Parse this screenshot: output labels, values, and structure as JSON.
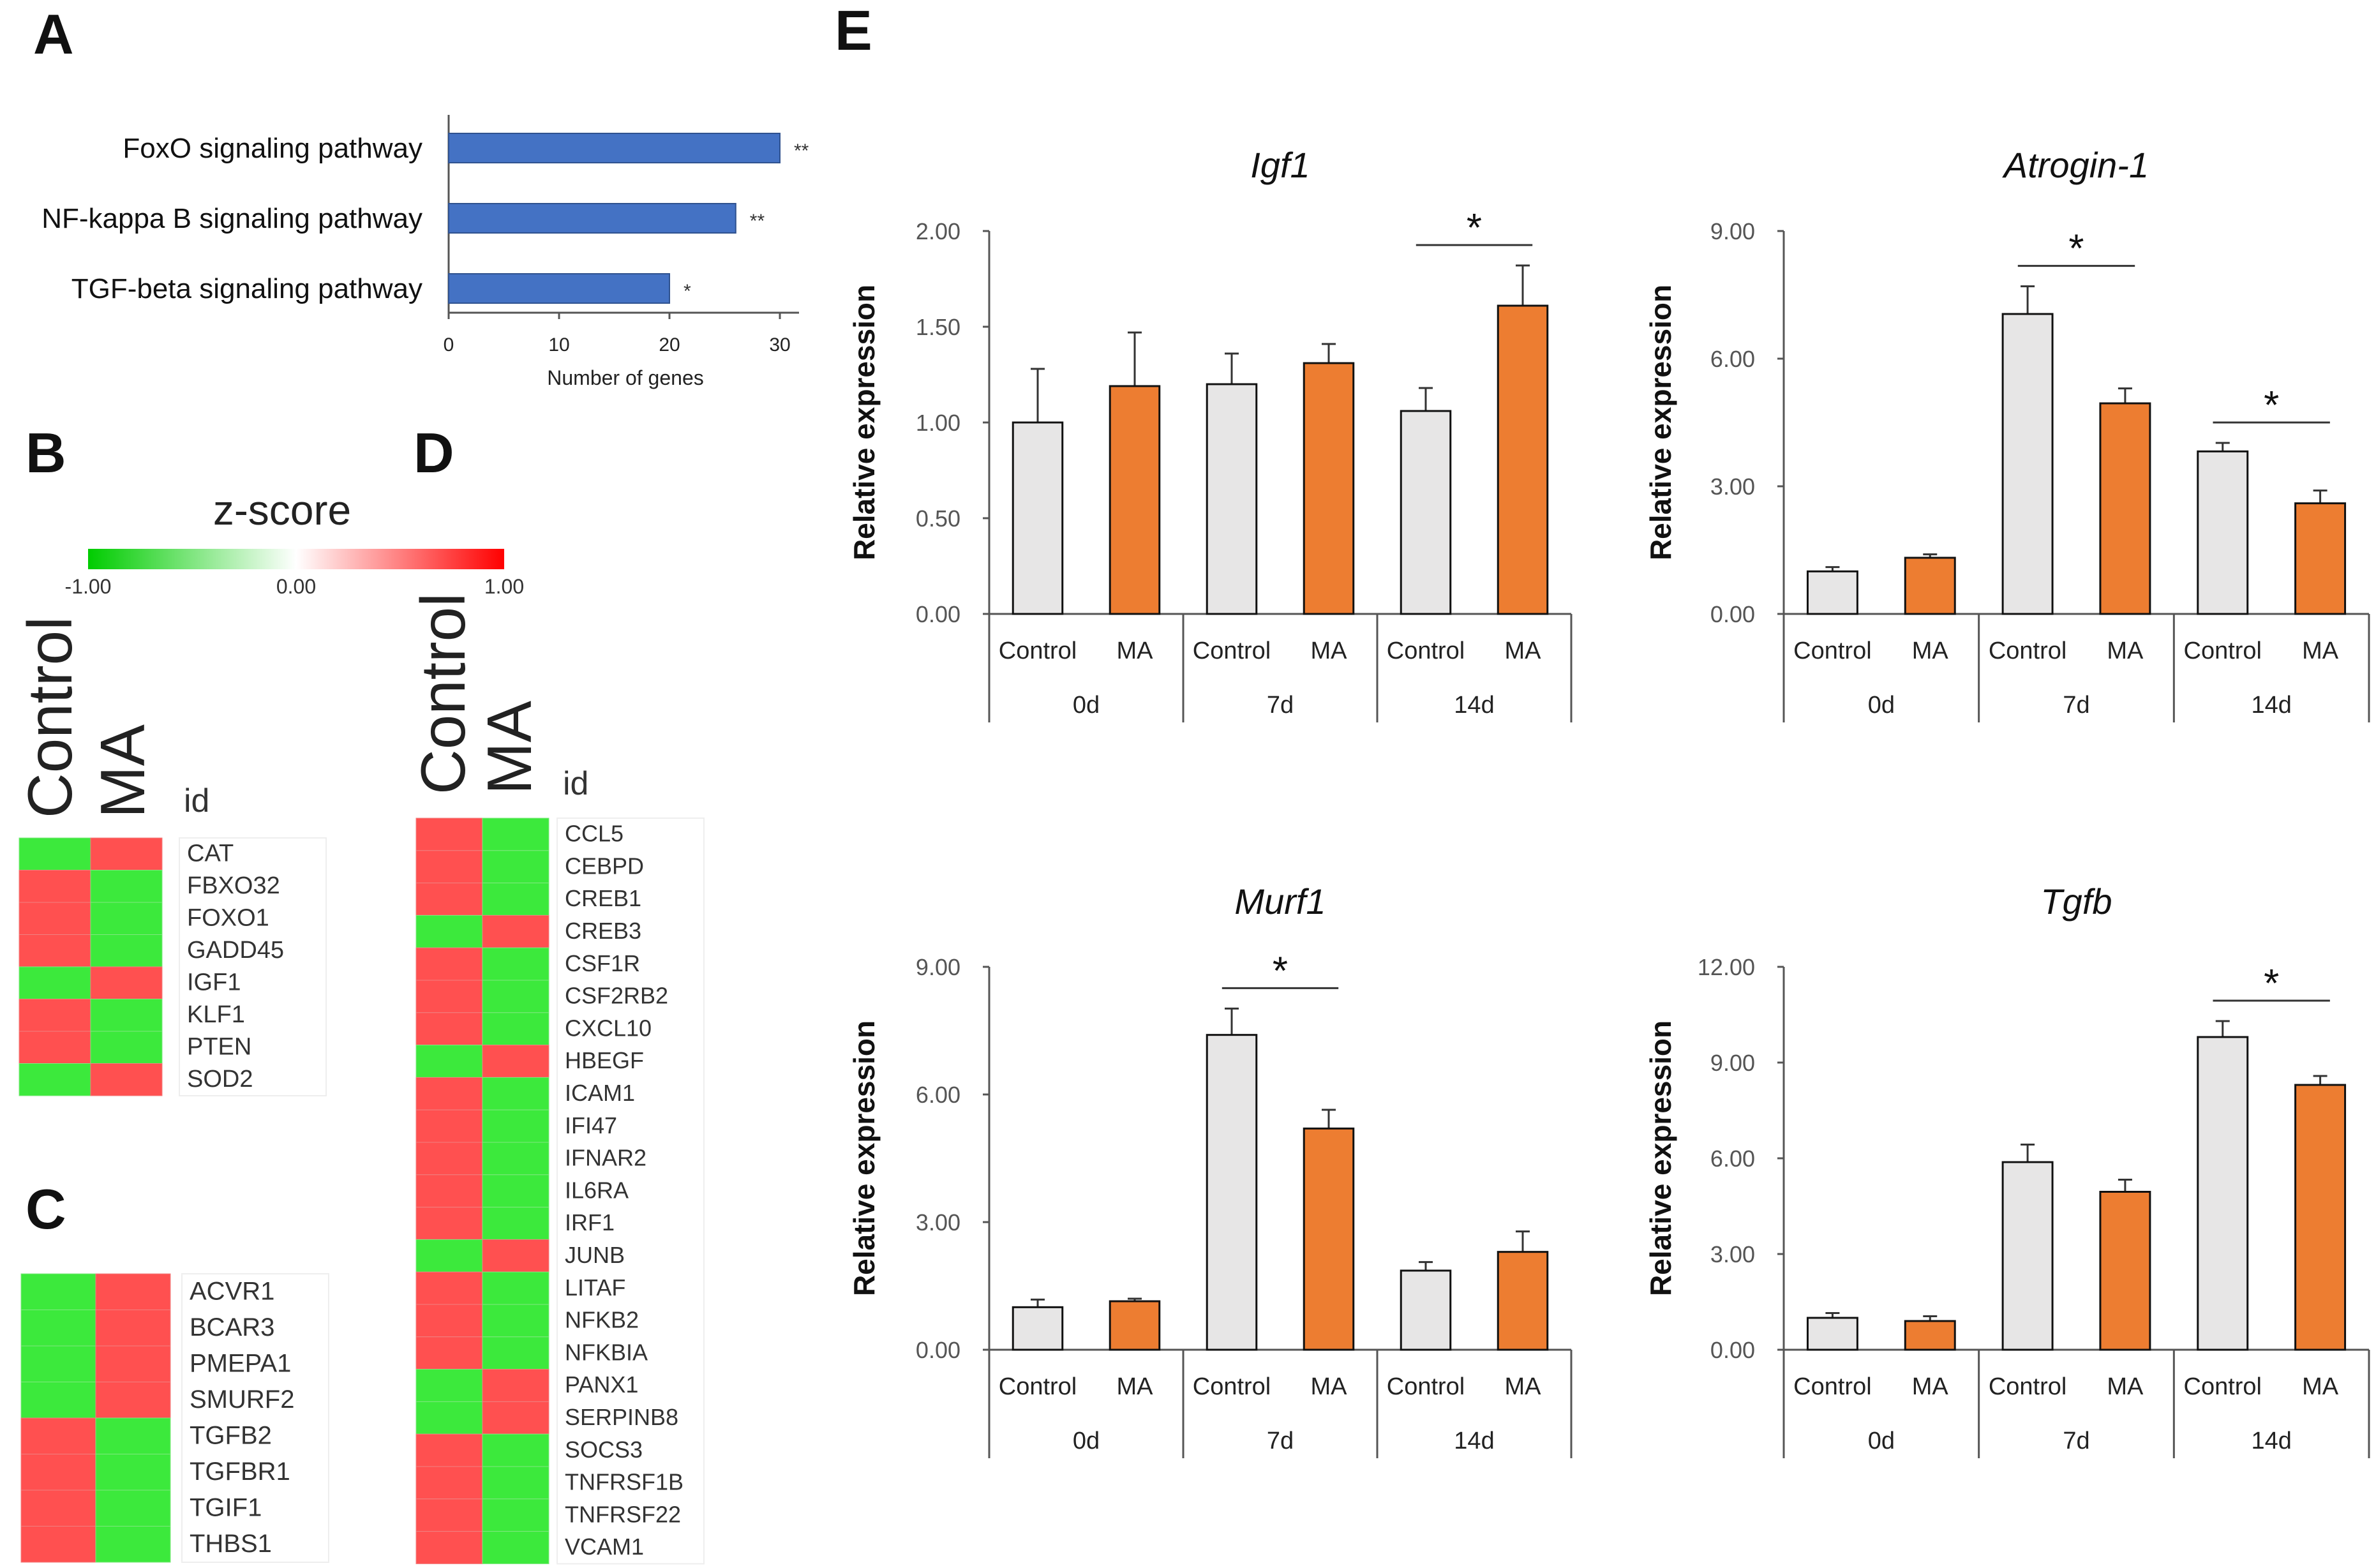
{
  "colors": {
    "bar_blue": "#4472C4",
    "bar_grey": "#E7E6E6",
    "bar_orange": "#ED7D31",
    "heat_red": "#FF5050",
    "heat_green": "#3CE93C",
    "axis": "#555555",
    "text": "#111111"
  },
  "panel_labels": {
    "a": "A",
    "b": "B",
    "c": "C",
    "d": "D",
    "e": "E"
  },
  "zscore": {
    "title": "z-score",
    "min_label": "-1.00",
    "mid_label": "0.00",
    "max_label": "1.00"
  },
  "heatmap_common": {
    "col_control": "Control",
    "col_ma": "MA",
    "id_label": "id"
  },
  "chart_data": [
    {
      "id": "A",
      "type": "bar",
      "orientation": "horizontal",
      "categories": [
        "FoxO signaling pathway",
        "NF-kappa B signaling pathway",
        "TGF-beta signaling pathway"
      ],
      "values": [
        30,
        26,
        20
      ],
      "significance": [
        "**",
        "**",
        "*"
      ],
      "xlabel": "Number of genes",
      "xlim": [
        0,
        30
      ],
      "ticks": [
        "0",
        "10",
        "20",
        "30"
      ]
    },
    {
      "id": "B",
      "type": "heatmap",
      "columns": [
        "Control",
        "MA"
      ],
      "rows": [
        "CAT",
        "FBXO32",
        "FOXO1",
        "GADD45",
        "IGF1",
        "KLF1",
        "PTEN",
        "SOD2"
      ],
      "values": [
        [
          -1,
          1
        ],
        [
          1,
          -1
        ],
        [
          1,
          -1
        ],
        [
          1,
          -1
        ],
        [
          -1,
          1
        ],
        [
          1,
          -1
        ],
        [
          1,
          -1
        ],
        [
          -1,
          1
        ]
      ]
    },
    {
      "id": "C",
      "type": "heatmap",
      "columns": [
        "Control",
        "MA"
      ],
      "rows": [
        "ACVR1",
        "BCAR3",
        "PMEPA1",
        "SMURF2",
        "TGFB2",
        "TGFBR1",
        "TGIF1",
        "THBS1"
      ],
      "values": [
        [
          -1,
          1
        ],
        [
          -1,
          1
        ],
        [
          -1,
          1
        ],
        [
          -1,
          1
        ],
        [
          1,
          -1
        ],
        [
          1,
          -1
        ],
        [
          1,
          -1
        ],
        [
          1,
          -1
        ]
      ]
    },
    {
      "id": "D",
      "type": "heatmap",
      "columns": [
        "Control",
        "MA"
      ],
      "rows": [
        "CCL5",
        "CEBPD",
        "CREB1",
        "CREB3",
        "CSF1R",
        "CSF2RB2",
        "CXCL10",
        "HBEGF",
        "ICAM1",
        "IFI47",
        "IFNAR2",
        "IL6RA",
        "IRF1",
        "JUNB",
        "LITAF",
        "NFKB2",
        "NFKBIA",
        "PANX1",
        "SERPINB8",
        "SOCS3",
        "TNFRSF1B",
        "TNFRSF22",
        "VCAM1"
      ],
      "values": [
        [
          1,
          -1
        ],
        [
          1,
          -1
        ],
        [
          1,
          -1
        ],
        [
          -1,
          1
        ],
        [
          1,
          -1
        ],
        [
          1,
          -1
        ],
        [
          1,
          -1
        ],
        [
          -1,
          1
        ],
        [
          1,
          -1
        ],
        [
          1,
          -1
        ],
        [
          1,
          -1
        ],
        [
          1,
          -1
        ],
        [
          1,
          -1
        ],
        [
          -1,
          1
        ],
        [
          1,
          -1
        ],
        [
          1,
          -1
        ],
        [
          1,
          -1
        ],
        [
          -1,
          1
        ],
        [
          -1,
          1
        ],
        [
          1,
          -1
        ],
        [
          1,
          -1
        ],
        [
          1,
          -1
        ],
        [
          1,
          -1
        ]
      ]
    },
    {
      "id": "E1",
      "type": "bar",
      "title": "Igf1",
      "ylabel": "Relative expression",
      "ylim": [
        0,
        2
      ],
      "yticks": [
        "0.00",
        "0.50",
        "1.00",
        "1.50",
        "2.00"
      ],
      "groups": [
        "0d",
        "7d",
        "14d"
      ],
      "categories": [
        "Control",
        "MA",
        "Control",
        "MA",
        "Control",
        "MA"
      ],
      "values": [
        1.0,
        1.19,
        1.2,
        1.31,
        1.06,
        1.61
      ],
      "errors": [
        0.28,
        0.28,
        0.16,
        0.1,
        0.12,
        0.21
      ],
      "significance": [
        {
          "group": "14d",
          "label": "*"
        }
      ]
    },
    {
      "id": "E2",
      "type": "bar",
      "title": "Atrogin-1",
      "ylabel": "Relative expression",
      "ylim": [
        0,
        9
      ],
      "yticks": [
        "0.00",
        "3.00",
        "6.00",
        "9.00"
      ],
      "groups": [
        "0d",
        "7d",
        "14d"
      ],
      "categories": [
        "Control",
        "MA",
        "Control",
        "MA",
        "Control",
        "MA"
      ],
      "values": [
        1.0,
        1.32,
        7.05,
        4.95,
        3.82,
        2.6
      ],
      "errors": [
        0.1,
        0.08,
        0.65,
        0.35,
        0.2,
        0.3
      ],
      "significance": [
        {
          "group": "7d",
          "label": "*"
        },
        {
          "group": "14d",
          "label": "*"
        }
      ]
    },
    {
      "id": "E3",
      "type": "bar",
      "title": "Murf1",
      "ylabel": "Relative expression",
      "ylim": [
        0,
        9
      ],
      "yticks": [
        "0.00",
        "3.00",
        "6.00",
        "9.00"
      ],
      "groups": [
        "0d",
        "7d",
        "14d"
      ],
      "categories": [
        "Control",
        "MA",
        "Control",
        "MA",
        "Control",
        "MA"
      ],
      "values": [
        1.0,
        1.14,
        7.4,
        5.2,
        1.86,
        2.3
      ],
      "errors": [
        0.18,
        0.06,
        0.62,
        0.44,
        0.2,
        0.48
      ],
      "significance": [
        {
          "group": "7d",
          "label": "*"
        }
      ]
    },
    {
      "id": "E4",
      "type": "bar",
      "title": "Tgfb",
      "ylabel": "Relative expression",
      "ylim": [
        0,
        12
      ],
      "yticks": [
        "0.00",
        "3.00",
        "6.00",
        "9.00",
        "12.00"
      ],
      "groups": [
        "0d",
        "7d",
        "14d"
      ],
      "categories": [
        "Control",
        "MA",
        "Control",
        "MA",
        "Control",
        "MA"
      ],
      "values": [
        1.0,
        0.9,
        5.88,
        4.95,
        9.8,
        8.3
      ],
      "errors": [
        0.15,
        0.15,
        0.55,
        0.38,
        0.5,
        0.28
      ],
      "significance": [
        {
          "group": "14d",
          "label": "*"
        }
      ]
    }
  ]
}
